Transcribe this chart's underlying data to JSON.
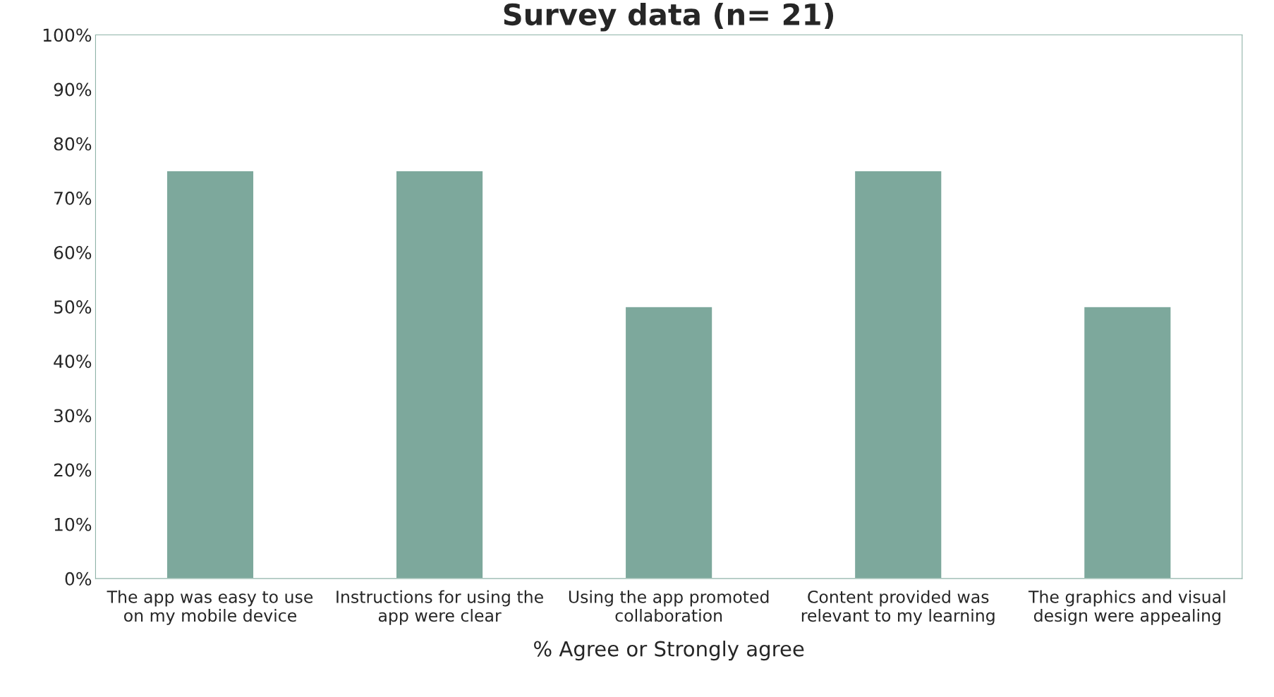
{
  "chart_data": {
    "type": "bar",
    "title": "Survey data (n= 21)",
    "xlabel": "% Agree or Strongly agree",
    "categories": [
      "The app was easy to use\non my mobile device",
      "Instructions for using the\napp were clear",
      "Using the app promoted\ncollaboration",
      "Content provided was\nrelevant to my learning",
      "The graphics and visual\ndesign were appealing"
    ],
    "values": [
      75,
      75,
      50,
      75,
      50
    ],
    "color": "#7da89c",
    "ylim": [
      0,
      100
    ],
    "yticks": [
      {
        "value": 0,
        "label": "0%"
      },
      {
        "value": 10,
        "label": "10%"
      },
      {
        "value": 20,
        "label": "20%"
      },
      {
        "value": 30,
        "label": "30%"
      },
      {
        "value": 40,
        "label": "40%"
      },
      {
        "value": 50,
        "label": "50%"
      },
      {
        "value": 60,
        "label": "60%"
      },
      {
        "value": 70,
        "label": "70%"
      },
      {
        "value": 80,
        "label": "80%"
      },
      {
        "value": 90,
        "label": "90%"
      },
      {
        "value": 100,
        "label": "100%"
      }
    ],
    "grid": false,
    "legend": false
  }
}
